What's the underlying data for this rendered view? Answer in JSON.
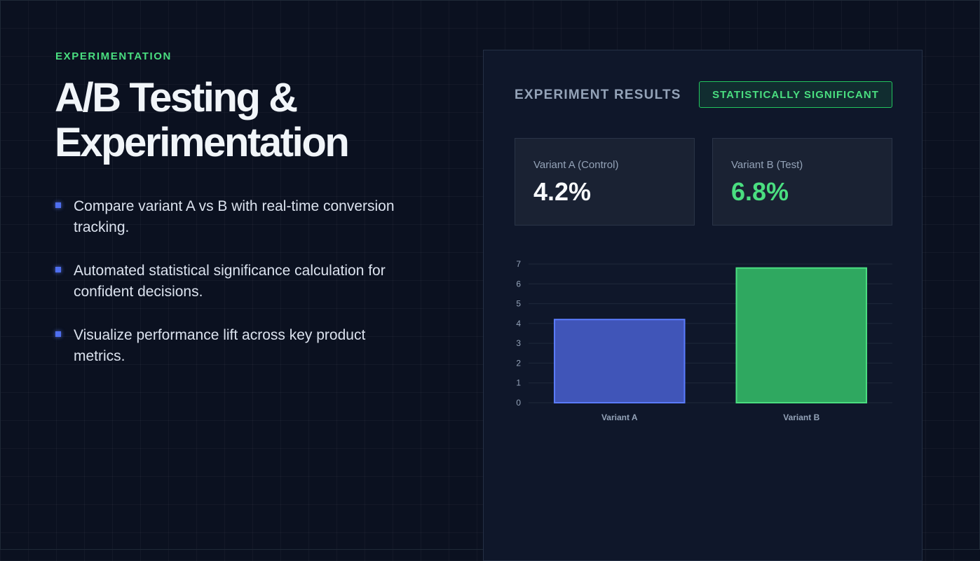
{
  "eyebrow": "EXPERIMENTATION",
  "title": "A/B Testing & Experimentation",
  "bullets": [
    "Compare variant A vs B with real-time conversion tracking.",
    "Automated statistical significance calculation for confident decisions.",
    "Visualize performance lift across key product metrics."
  ],
  "panel": {
    "title": "EXPERIMENT RESULTS",
    "badge": "STATISTICALLY SIGNIFICANT",
    "cards": [
      {
        "label": "Variant A (Control)",
        "value": "4.2%"
      },
      {
        "label": "Variant B (Test)",
        "value": "6.8%"
      }
    ]
  },
  "colors": {
    "accent_green": "#4ade80",
    "bar_a": "#4055b8",
    "bar_a_border": "#5b7cff",
    "bar_b": "#2fa860",
    "bar_b_border": "#4ade80",
    "bullet_marker": "#4f6ff0"
  },
  "chart_data": {
    "type": "bar",
    "categories": [
      "Variant A",
      "Variant B"
    ],
    "values": [
      4.2,
      6.8
    ],
    "ylim": [
      0,
      7
    ],
    "yticks": [
      "0",
      "1",
      "2",
      "3",
      "4",
      "5",
      "6",
      "7"
    ],
    "grid": true,
    "legend": "none"
  }
}
